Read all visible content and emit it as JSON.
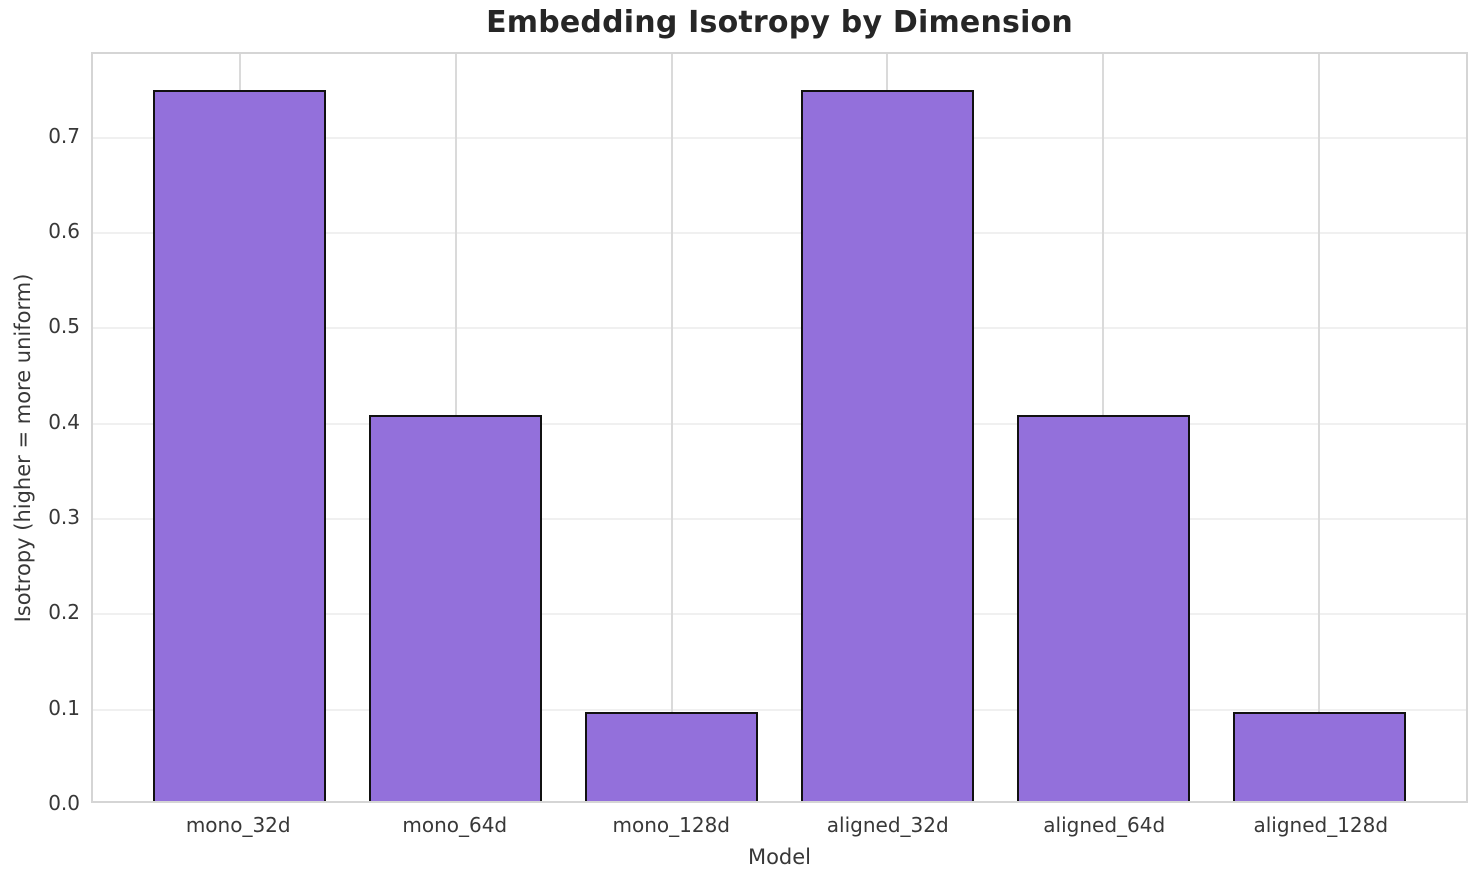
{
  "chart_data": {
    "type": "bar",
    "title": "Embedding Isotropy by Dimension",
    "xlabel": "Model",
    "ylabel": "Isotropy (higher = more uniform)",
    "categories": [
      "mono_32d",
      "mono_64d",
      "mono_128d",
      "aligned_32d",
      "aligned_64d",
      "aligned_128d"
    ],
    "values": [
      0.75,
      0.407,
      0.094,
      0.75,
      0.407,
      0.094
    ],
    "ylim": [
      0.0,
      0.788
    ],
    "yticks": [
      0.0,
      0.1,
      0.2,
      0.3,
      0.4,
      0.5,
      0.6,
      0.7
    ],
    "ytick_labels": [
      "0.0",
      "0.1",
      "0.2",
      "0.3",
      "0.4",
      "0.5",
      "0.6",
      "0.7"
    ],
    "grid": true,
    "legend": "none",
    "bar_color": "#9370DB",
    "bar_edge_color": "#111111",
    "background_color": "#ffffff"
  }
}
